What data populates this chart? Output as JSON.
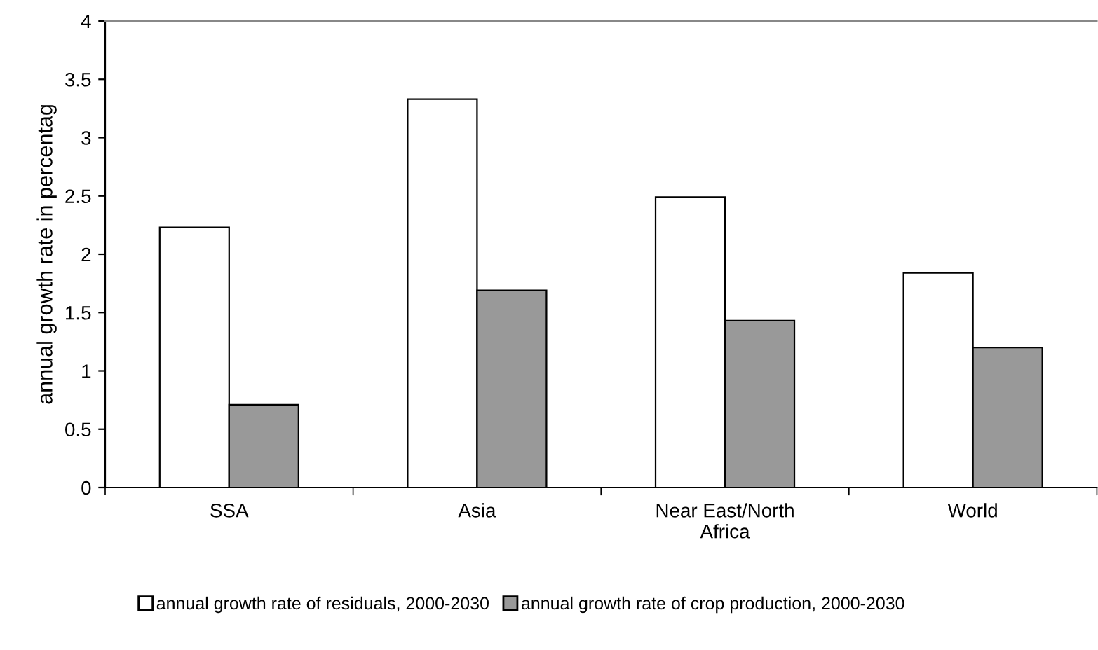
{
  "chart_data": {
    "type": "bar",
    "ylabel": "annual growth rate in percentag",
    "categories": [
      "SSA",
      "Asia",
      "Near East/North\nAfrica",
      "World"
    ],
    "series": [
      {
        "name": "annual growth rate of residuals, 2000-2030",
        "color": "#ffffff",
        "values": [
          2.23,
          3.33,
          2.49,
          1.84
        ]
      },
      {
        "name": "annual growth rate of crop production, 2000-2030",
        "color": "#999999",
        "values": [
          0.71,
          1.69,
          1.43,
          1.2
        ]
      }
    ],
    "ylim": [
      0,
      4
    ],
    "yticks": [
      0,
      0.5,
      1,
      1.5,
      2,
      2.5,
      3,
      3.5,
      4
    ],
    "grid": false,
    "legend": "bottom"
  }
}
